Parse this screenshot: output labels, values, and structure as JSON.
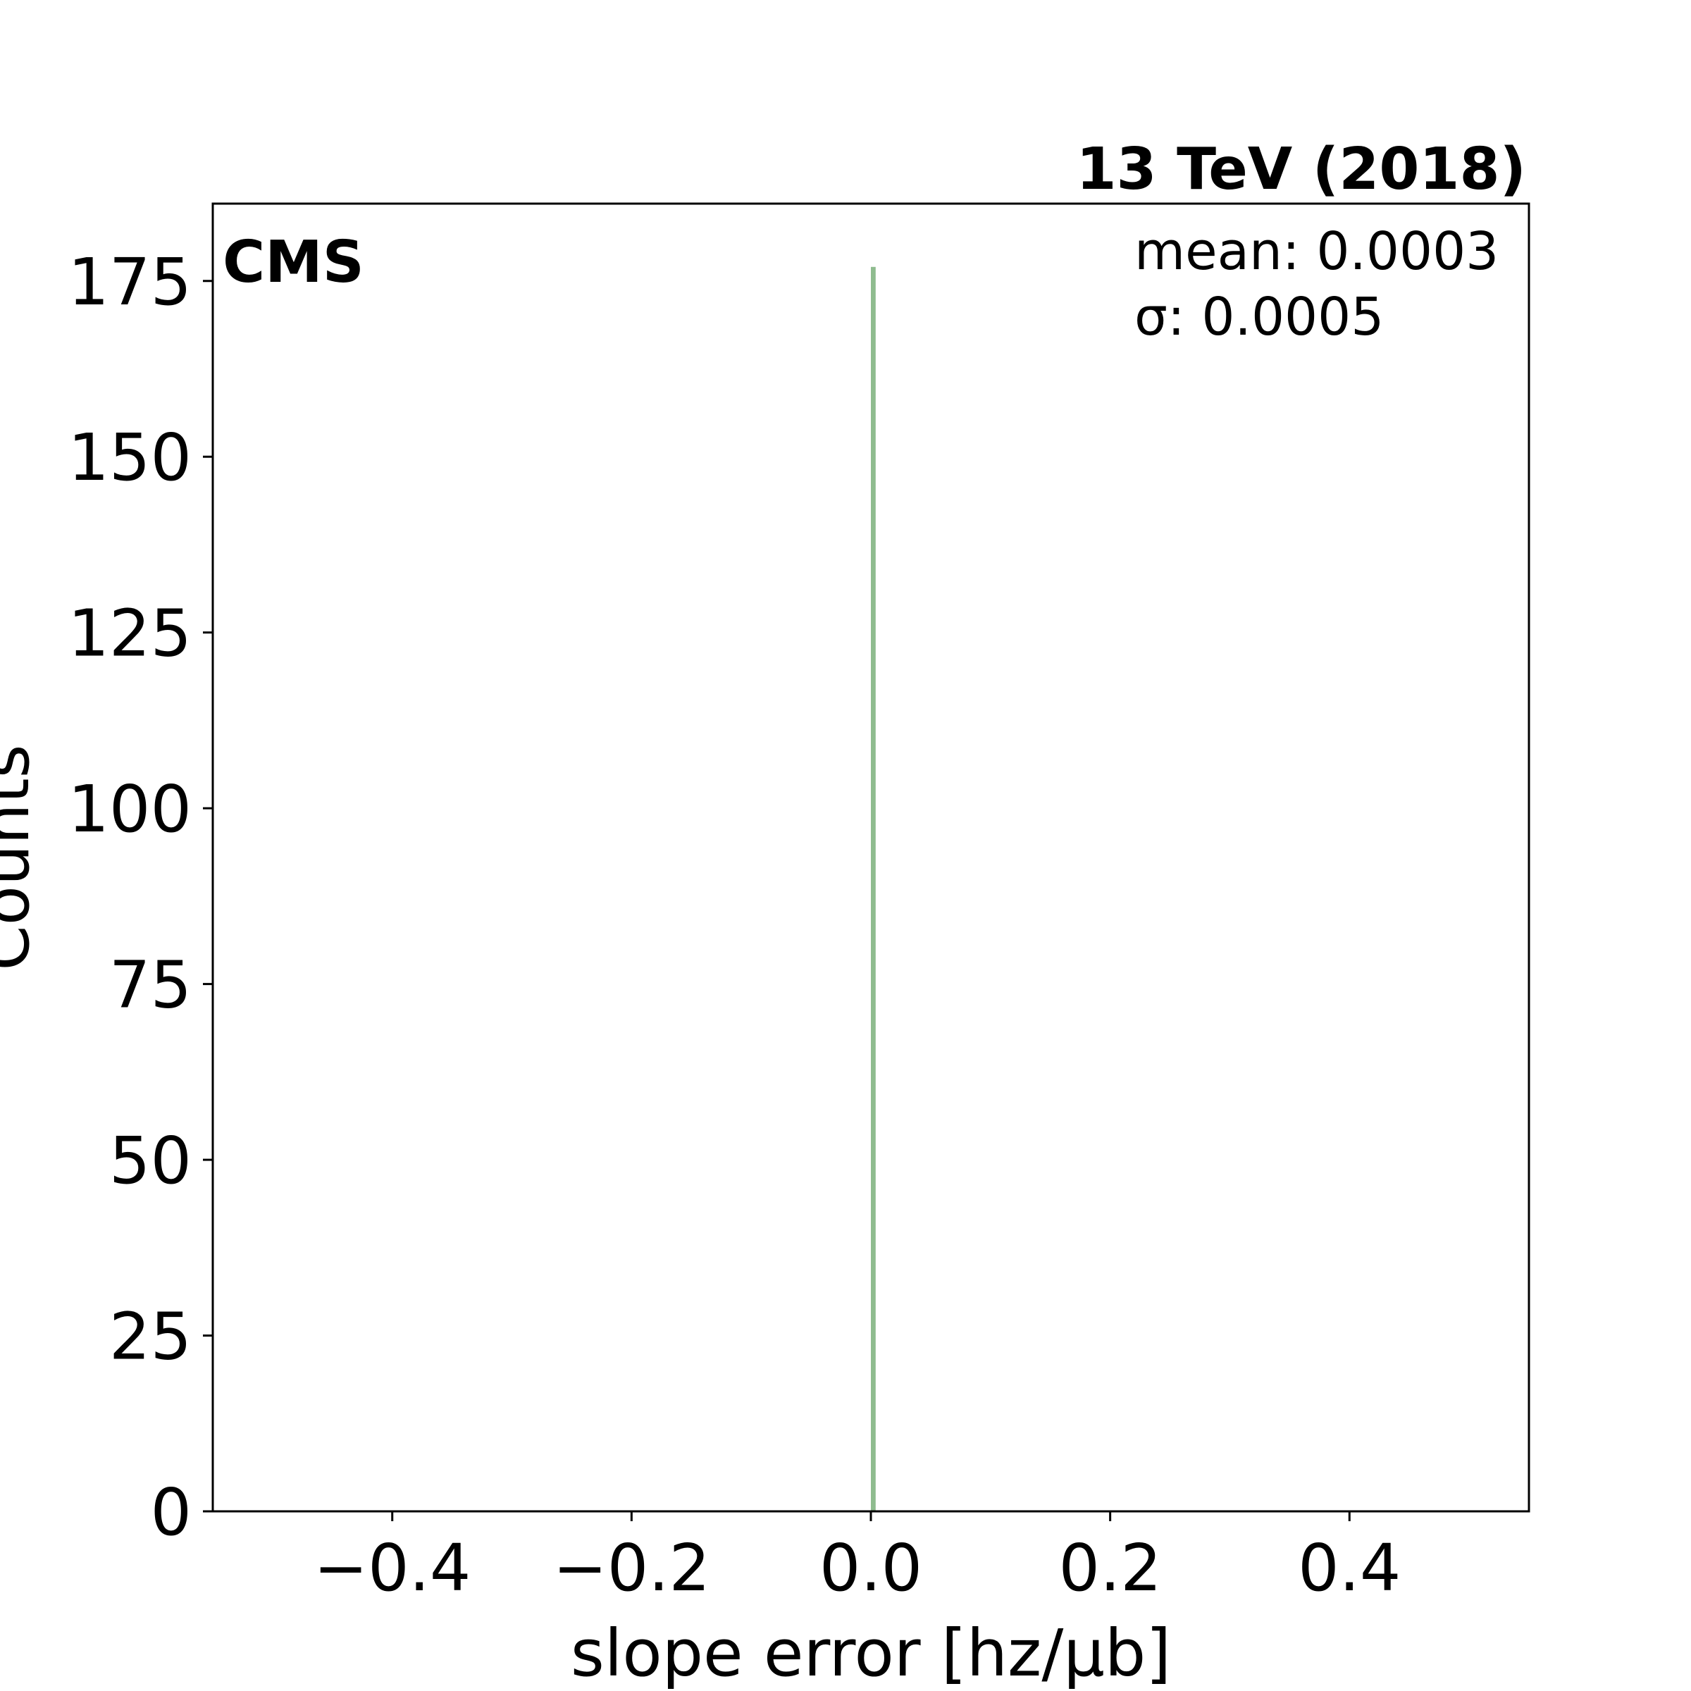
{
  "chart_data": {
    "type": "bar",
    "xlabel": "slope error [hz/μb]",
    "ylabel": "Counts",
    "xlim": [
      -0.55,
      0.55
    ],
    "ylim": [
      0,
      186
    ],
    "xticks": [
      -0.4,
      -0.2,
      0.0,
      0.2,
      0.4
    ],
    "xtick_labels": [
      "−0.4",
      "−0.2",
      "0.0",
      "0.2",
      "0.4"
    ],
    "yticks": [
      0,
      25,
      50,
      75,
      100,
      125,
      150,
      175
    ],
    "ytick_labels": [
      "0",
      "25",
      "50",
      "75",
      "100",
      "125",
      "150",
      "175"
    ],
    "bins": [
      {
        "x_start": 0.0,
        "x_end": 0.004,
        "count": 177
      }
    ],
    "bar_color": "#8fbc8f",
    "grid": false,
    "experiment_label": "CMS",
    "energy_label": "13 TeV (2018)",
    "stats": {
      "mean_text": "mean: 0.0003",
      "sigma_text": "σ: 0.0005"
    }
  }
}
